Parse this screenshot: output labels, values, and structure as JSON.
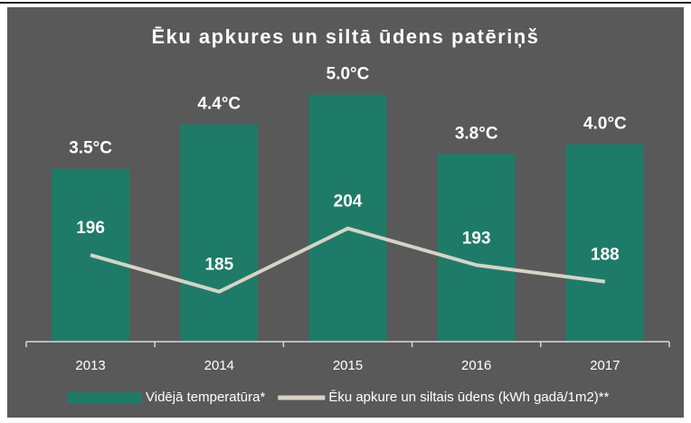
{
  "chart_data": {
    "type": "bar",
    "title": "Ēku apkures un siltā ūdens patēriņš",
    "categories": [
      "2013",
      "2014",
      "2015",
      "2016",
      "2017"
    ],
    "series": [
      {
        "name": "Vidējā temperatūra*",
        "color": "#1e7b67",
        "values": [
          3.5,
          4.4,
          5.0,
          3.8,
          4.0
        ],
        "value_labels": [
          "3.5°C",
          "4.4°C",
          "5.0°C",
          "3.8°C",
          "4.0°C"
        ]
      },
      {
        "name": "Ēku apkure un siltais ūdens (kWh gadā/1m2)**",
        "type": "line",
        "axis": "y2",
        "color": "#d8d3c6",
        "values": [
          196,
          185,
          204,
          193,
          188
        ]
      }
    ],
    "ylim": [
      0,
      6
    ],
    "y2lim": [
      170,
      259
    ],
    "legend": "bottom"
  }
}
